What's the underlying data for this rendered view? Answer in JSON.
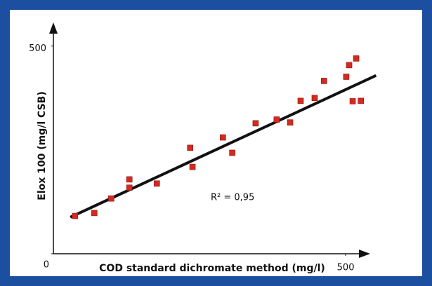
{
  "chart_data": {
    "type": "scatter",
    "xlabel": "COD standard dichromate method (mg/l)",
    "ylabel": "Elox 100 (mg/l CSB)",
    "annotation": "R² = 0,95",
    "x": [
      37,
      70,
      99,
      130,
      130,
      177,
      234,
      238,
      290,
      306,
      346,
      382,
      405,
      423,
      447,
      463,
      501,
      506,
      518,
      512,
      526
    ],
    "values": [
      91,
      98,
      133,
      179,
      159,
      169,
      255,
      209,
      280,
      243,
      314,
      323,
      316,
      368,
      375,
      416,
      426,
      454,
      470,
      367,
      368
    ],
    "color": "#d42a20",
    "trendline": {
      "x": [
        29,
        552
      ],
      "values": [
        88,
        429
      ],
      "color": "#111111"
    },
    "xlim": [
      0,
      560
    ],
    "ylim": [
      0,
      550
    ],
    "xticks": [
      500
    ],
    "yticks": [
      0,
      500
    ],
    "grid": false
  }
}
